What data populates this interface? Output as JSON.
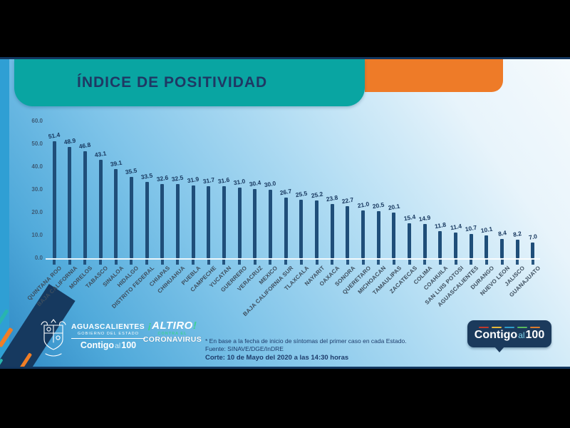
{
  "header": {
    "title": "ÍNDICE DE POSITIVIDAD"
  },
  "chart_data": {
    "type": "bar",
    "title": "ÍNDICE DE POSITIVIDAD",
    "xlabel": "",
    "ylabel": "",
    "ylim": [
      0,
      60
    ],
    "y_ticks": [
      "0.0",
      "10.0",
      "20.0",
      "30.0",
      "40.0",
      "50.0",
      "60.0"
    ],
    "grid": false,
    "legend": "none",
    "bar_color": "#1F4E79",
    "value_label_color": "#17375E",
    "categories": [
      "QUINTANA ROO",
      "BAJA CALIFORNIA",
      "MORELOS",
      "TABASCO",
      "SINALOA",
      "HIDALGO",
      "DISTRITO FEDERAL",
      "CHIAPAS",
      "CHIHUAHUA",
      "PUEBLA",
      "CAMPECHE",
      "YUCATAN",
      "GUERRERO",
      "VERACRUZ",
      "MEXICO",
      "BAJA CALIFORNIA SUR",
      "TLAXCALA",
      "NAYARIT",
      "OAXACA",
      "SONORA",
      "QUERETARO",
      "MICHOACAN",
      "TAMAULIPAS",
      "ZACATECAS",
      "COLIMA",
      "COAHUILA",
      "SAN LUIS POTOSI",
      "AGUASCALIENTES",
      "DURANGO",
      "NUEVO LEON",
      "JALISCO",
      "GUANAJUATO"
    ],
    "values": [
      51.4,
      48.9,
      46.8,
      43.1,
      39.1,
      35.5,
      33.5,
      32.6,
      32.5,
      31.9,
      31.7,
      31.6,
      31.0,
      30.4,
      30.0,
      26.7,
      25.5,
      25.2,
      23.8,
      22.7,
      21.0,
      20.5,
      20.1,
      15.4,
      14.9,
      11.8,
      11.4,
      10.7,
      10.1,
      8.4,
      8.2,
      7.0
    ]
  },
  "footnote": {
    "line1": "* En base a la fecha de inicio de síntomas del primer caso en cada Estado.",
    "line2": "Fuente: SINAVE/DGE/InDRE",
    "line3": "Corte: 10 de Mayo del 2020 a las 14:30 horas"
  },
  "logos": {
    "state": {
      "name": "AGUASCALIENTES",
      "subtitle": "GOBIERNO DEL ESTADO",
      "slogan_word": "Contigo",
      "slogan_mid": "al",
      "slogan_num": "100"
    },
    "altiro": {
      "open": "¡",
      "word": "ALTIRO",
      "close": "!",
      "middle": "CONTRA EL",
      "bottom": "CORONAVIRUS"
    },
    "badge": {
      "word": "Contigo",
      "mid": "al",
      "num": "100"
    }
  },
  "colors": {
    "teal_banner": "#09A5A2",
    "orange_accent": "#EE7B28",
    "navy_frame": "#12365E",
    "badge_bg": "#1B3A5C",
    "badge_dashes": [
      "#C0392B",
      "#E8B83A",
      "#2E9CC9",
      "#58B95E",
      "#D97B2E"
    ],
    "altiro_green": "#3ED196",
    "bar": "#1F4E79"
  }
}
